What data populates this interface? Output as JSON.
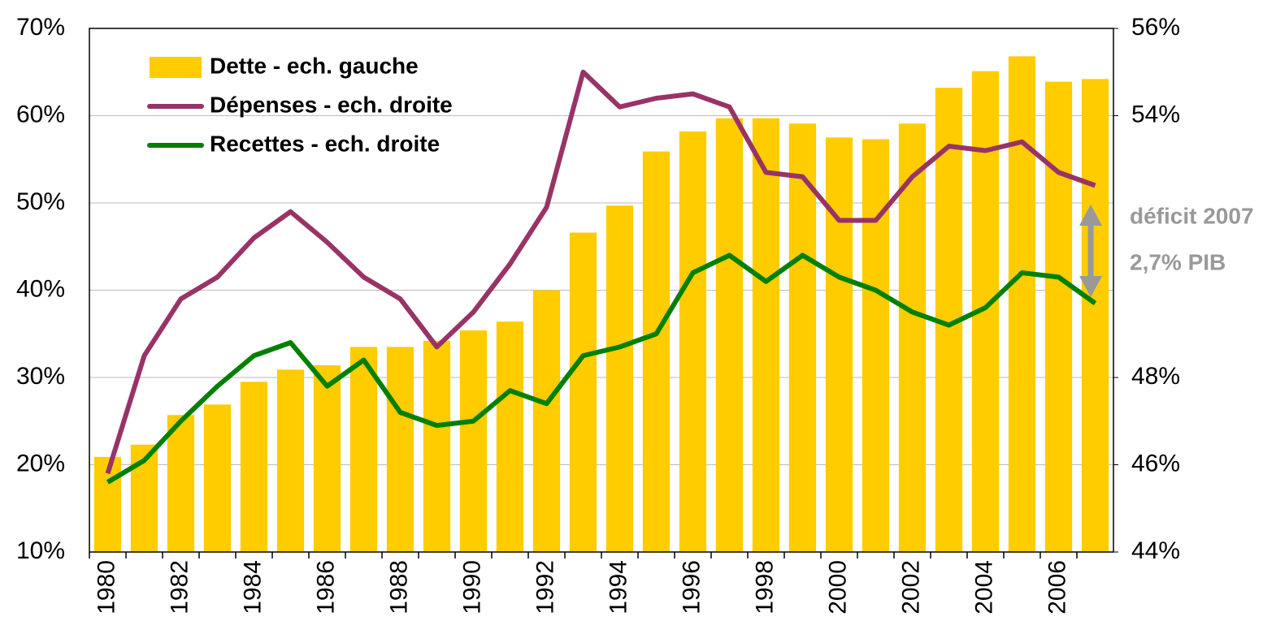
{
  "chart_data": {
    "type": "bar",
    "categories": [
      "1980",
      null,
      "1982",
      null,
      "1984",
      null,
      "1986",
      null,
      "1988",
      null,
      "1990",
      null,
      "1992",
      null,
      "1994",
      null,
      "1996",
      null,
      "1998",
      null,
      "2000",
      null,
      "2002",
      null,
      "2004",
      null,
      "2006",
      null
    ],
    "series": [
      {
        "name": "Dette - ech. gauche",
        "type": "bar",
        "color": "#FFCC00",
        "values": [
          20.9,
          22.3,
          25.7,
          26.9,
          29.5,
          30.9,
          31.4,
          33.5,
          33.5,
          34.2,
          35.4,
          36.4,
          40.0,
          46.6,
          49.7,
          55.9,
          58.2,
          59.7,
          59.7,
          59.1,
          57.5,
          57.3,
          59.1,
          63.2,
          65.1,
          66.8,
          63.9,
          64.2
        ]
      },
      {
        "name": "Dépenses - ech. droite",
        "type": "line",
        "axis": "y2",
        "color": "#993366",
        "values": [
          45.8,
          48.5,
          49.8,
          50.3,
          51.2,
          51.8,
          51.1,
          50.3,
          49.8,
          48.7,
          49.5,
          50.6,
          51.9,
          55.0,
          54.2,
          54.4,
          54.5,
          54.2,
          52.7,
          52.6,
          51.6,
          51.6,
          52.6,
          53.3,
          53.2,
          53.4,
          52.7,
          52.4
        ]
      },
      {
        "name": "Recettes - ech. droite",
        "type": "line",
        "axis": "y2",
        "color": "#008000",
        "values": [
          45.6,
          46.1,
          47.0,
          47.8,
          48.5,
          48.8,
          47.8,
          48.4,
          47.2,
          46.9,
          47.0,
          47.7,
          47.4,
          48.5,
          48.7,
          49.0,
          50.4,
          50.8,
          50.2,
          50.8,
          50.3,
          50.0,
          49.5,
          49.2,
          49.6,
          50.4,
          50.3,
          49.7
        ]
      }
    ],
    "ylim": [
      10,
      70
    ],
    "yticks": [
      {
        "value": 10,
        "label": "10%"
      },
      {
        "value": 20,
        "label": "20%"
      },
      {
        "value": 30,
        "label": "30%"
      },
      {
        "value": 40,
        "label": "40%"
      },
      {
        "value": 50,
        "label": "50%"
      },
      {
        "value": 60,
        "label": "60%"
      },
      {
        "value": 70,
        "label": "70%"
      }
    ],
    "y2lim": [
      44,
      56
    ],
    "y2ticks": [
      {
        "value": 44,
        "label": "44%"
      },
      {
        "value": 46,
        "label": "46%"
      },
      {
        "value": 48,
        "label": "48%"
      },
      {
        "value": 54,
        "label": "54%"
      },
      {
        "value": 56,
        "label": "56%"
      }
    ],
    "annotations": [
      "déficit 2007",
      "2,7% PIB"
    ],
    "grid": true,
    "legend": "upper left"
  }
}
